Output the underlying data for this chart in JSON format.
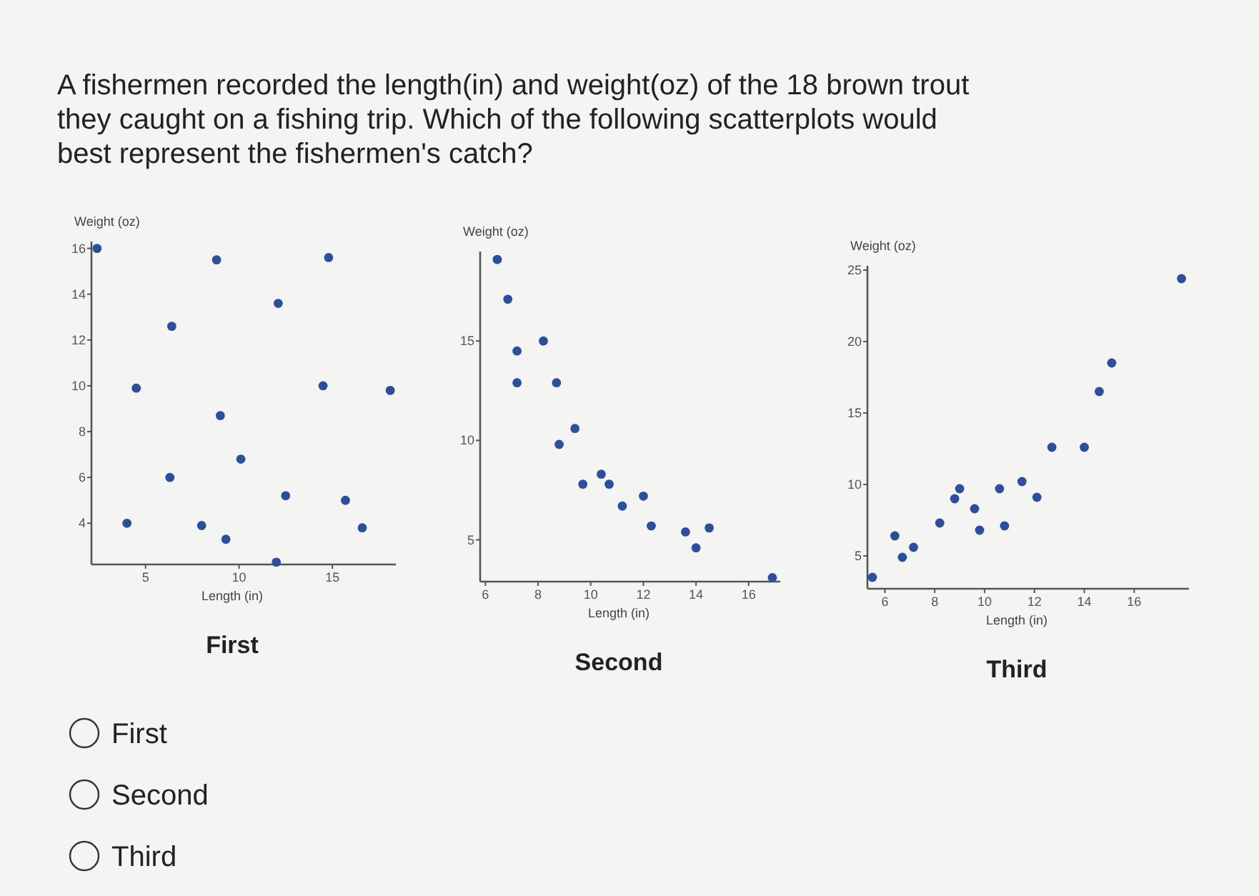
{
  "chart_data": [
    {
      "type": "other",
      "title": "A fishermen recorded the length(in) and weight(oz) of the 18 brown trout they caught on a fishing trip. Which of the following scatterplots would best represent the fishermen's catch?",
      "annotations": [
        "First",
        "Second",
        "Third"
      ]
    },
    {
      "type": "scatter",
      "title": "First",
      "xlabel": "Length (in)",
      "ylabel": "Weight (oz)",
      "xlim": [
        2.1,
        18.4
      ],
      "ylim": [
        2.2,
        16.3
      ],
      "xticks": [
        5,
        10,
        15
      ],
      "yticks": [
        4,
        6,
        8,
        10,
        12,
        14,
        16
      ],
      "grid": false,
      "marker": "circle",
      "series": [
        {
          "color": "#2b4f9e",
          "x": [
            2.4,
            8.8,
            14.8,
            12.1,
            6.4,
            4.5,
            14.5,
            18.1,
            9.0,
            10.1,
            6.3,
            12.5,
            15.7,
            4.0,
            8.0,
            9.3,
            16.6,
            12.0
          ],
          "values": [
            16,
            15.5,
            15.6,
            13.6,
            12.6,
            9.9,
            10.0,
            9.8,
            8.7,
            6.8,
            6.0,
            5.2,
            5.0,
            4.0,
            3.9,
            3.3,
            3.8,
            2.3
          ]
        }
      ]
    },
    {
      "type": "scatter",
      "title": "Second",
      "xlabel": "Length (in)",
      "ylabel": "Weight (oz)",
      "xlim": [
        5.8,
        17.2
      ],
      "ylim": [
        2.9,
        19.5
      ],
      "xticks": [
        6,
        8,
        10,
        12,
        14,
        16
      ],
      "yticks": [
        5,
        10,
        15
      ],
      "grid": false,
      "marker": "circle",
      "series": [
        {
          "color": "#2b4f9e",
          "x": [
            6.45,
            6.85,
            7.2,
            8.2,
            7.2,
            8.7,
            9.4,
            8.8,
            9.7,
            10.4,
            10.7,
            11.2,
            12.0,
            12.3,
            13.6,
            14.0,
            14.5,
            16.9
          ],
          "values": [
            19.1,
            17.1,
            14.5,
            15.0,
            12.9,
            12.9,
            10.6,
            9.8,
            7.8,
            8.3,
            7.8,
            6.7,
            7.2,
            5.7,
            5.4,
            4.6,
            5.6,
            3.1
          ]
        }
      ]
    },
    {
      "type": "scatter",
      "title": "Third",
      "xlabel": "Length (in)",
      "ylabel": "Weight (oz)",
      "xlim": [
        5.3,
        18.2
      ],
      "ylim": [
        2.7,
        25.3
      ],
      "xticks": [
        6,
        8,
        10,
        12,
        14,
        16
      ],
      "yticks": [
        5,
        10,
        15,
        20,
        25
      ],
      "grid": false,
      "marker": "circle",
      "series": [
        {
          "color": "#2b4f9e",
          "x": [
            5.5,
            6.4,
            6.7,
            7.15,
            8.2,
            8.8,
            9.0,
            9.6,
            9.8,
            10.6,
            10.8,
            11.5,
            12.1,
            12.7,
            14.0,
            14.6,
            15.1,
            17.9
          ],
          "values": [
            3.5,
            6.4,
            4.9,
            5.6,
            7.3,
            9.0,
            9.7,
            8.3,
            6.8,
            9.7,
            7.1,
            10.2,
            9.1,
            12.6,
            12.6,
            16.5,
            18.5,
            24.4
          ]
        }
      ]
    }
  ]
}
